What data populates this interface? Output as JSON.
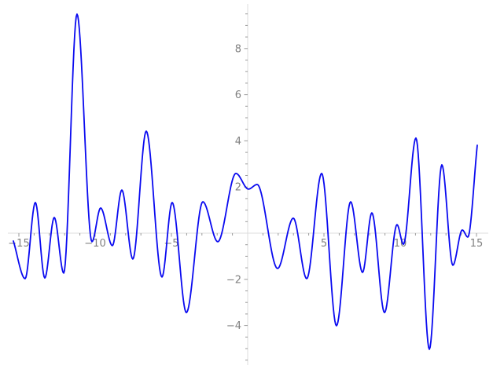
{
  "chart_data": {
    "type": "line",
    "title": "",
    "xlabel": "",
    "ylabel": "",
    "xlim": [
      -15.4,
      15.4
    ],
    "ylim": [
      -5.6,
      9.8
    ],
    "grid": false,
    "legend_position": "none",
    "background_color": "#ffffff",
    "axes": {
      "axis_line_color": "#dcdcdc",
      "tick_color": "#9a9a9a",
      "tick_label_color": "#808080",
      "x_major_ticks": [
        -15,
        -10,
        -5,
        5,
        10,
        15
      ],
      "x_major_labels": [
        "−15",
        "−10",
        "−5",
        "5",
        "10",
        "15"
      ],
      "x_minor_step": 1,
      "x_minor_range": [
        -15,
        15
      ],
      "y_major_ticks": [
        8,
        6,
        4,
        2,
        -2,
        -4
      ],
      "y_major_labels": [
        "8",
        "6",
        "4",
        "2",
        "−2",
        "−4"
      ],
      "y_minor_step": 0.5,
      "y_minor_range": [
        -5.5,
        9.5
      ]
    },
    "series": [
      {
        "name": "function-curve",
        "color": "#0a0af0",
        "stroke_width": 1.8,
        "interpolation": "monotone-cubic",
        "points": [
          [
            -15.36,
            -0.34
          ],
          [
            -14.59,
            -1.97
          ],
          [
            -13.92,
            1.33
          ],
          [
            -13.3,
            -1.94
          ],
          [
            -12.68,
            0.68
          ],
          [
            -12.06,
            -1.73
          ],
          [
            -11.19,
            9.49
          ],
          [
            -10.21,
            -0.37
          ],
          [
            -9.64,
            1.09
          ],
          [
            -8.87,
            -0.54
          ],
          [
            -8.25,
            1.87
          ],
          [
            -7.53,
            -1.12
          ],
          [
            -6.65,
            4.42
          ],
          [
            -5.62,
            -1.9
          ],
          [
            -4.95,
            1.33
          ],
          [
            -4.02,
            -3.44
          ],
          [
            -2.94,
            1.36
          ],
          [
            -1.96,
            -0.37
          ],
          [
            -0.77,
            2.59
          ],
          [
            0.05,
            1.91
          ],
          [
            0.62,
            2.11
          ],
          [
            1.96,
            -1.53
          ],
          [
            2.99,
            0.65
          ],
          [
            3.87,
            -1.97
          ],
          [
            4.85,
            2.59
          ],
          [
            5.82,
            -4.01
          ],
          [
            6.75,
            1.36
          ],
          [
            7.53,
            -1.7
          ],
          [
            8.14,
            0.88
          ],
          [
            8.97,
            -3.44
          ],
          [
            9.79,
            0.37
          ],
          [
            10.21,
            -0.48
          ],
          [
            11.03,
            4.12
          ],
          [
            11.91,
            -5.03
          ],
          [
            12.73,
            2.96
          ],
          [
            13.45,
            -1.39
          ],
          [
            14.07,
            0.14
          ],
          [
            14.43,
            -0.17
          ],
          [
            15.05,
            3.81
          ]
        ]
      }
    ]
  }
}
